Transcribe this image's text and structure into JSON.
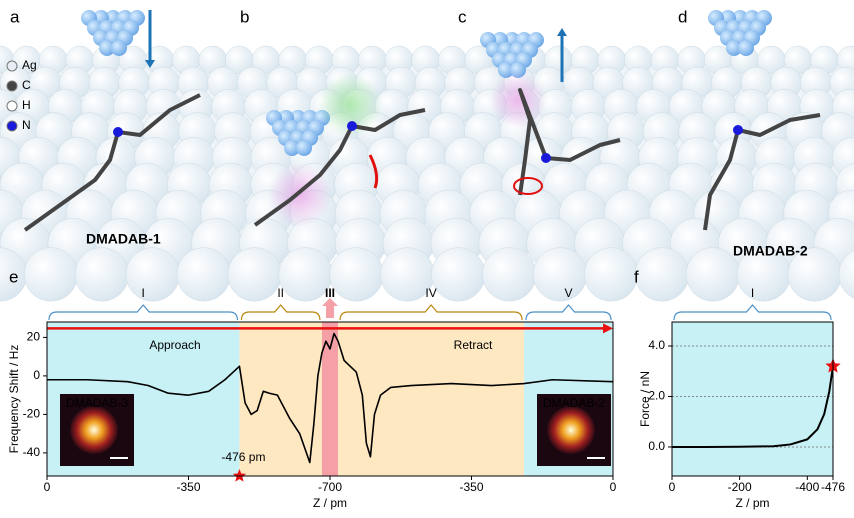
{
  "panels": {
    "a": "a",
    "b": "b",
    "c": "c",
    "d": "d",
    "legend": [
      "Ag",
      "C",
      "H",
      "N"
    ],
    "molecule_1": "DMADAB-1",
    "molecule_2": "DMADAB-2"
  },
  "chart_data": [
    {
      "type": "line",
      "panel_label": "e",
      "xlabel": "Z / pm",
      "ylabel": "Frequency Shift / Hz",
      "x": [
        0,
        100,
        200,
        250,
        300,
        350,
        400,
        440,
        476,
        490,
        505,
        520,
        535,
        550,
        570,
        600,
        625,
        650,
        660,
        670,
        680,
        690,
        700,
        710,
        720,
        735,
        750,
        765,
        780,
        790,
        800,
        810,
        825,
        850,
        900,
        1000,
        1100,
        1180,
        1250,
        1400
      ],
      "series": [
        {
          "color": "#000000",
          "values": [
            -2,
            -2,
            -3,
            -5,
            -9,
            -10,
            -8,
            -2,
            5,
            -14,
            -20,
            -18,
            -8,
            -9,
            -10,
            -22,
            -30,
            -45,
            -25,
            0,
            12,
            18,
            14,
            22,
            18,
            8,
            5,
            2,
            -10,
            -35,
            -42,
            -20,
            -10,
            -6,
            -5,
            -4,
            -5,
            -4,
            -2,
            -3
          ]
        }
      ],
      "xlim": [
        0,
        1400
      ],
      "ylim": [
        -52,
        28
      ],
      "xticks": [
        0,
        {
          "value": 350,
          "label": "-350"
        },
        {
          "value": 700,
          "label": "-700"
        },
        {
          "value": 1050,
          "label": "-350"
        },
        {
          "value": 1400,
          "label": "0"
        }
      ],
      "yticks": [
        20,
        0,
        -20,
        -40
      ],
      "regions": [
        {
          "label": "I",
          "range": [
            0,
            476
          ],
          "color": "#c8f1f6",
          "bracket": "#4a90c8"
        },
        {
          "label": "II",
          "range": [
            476,
            680
          ],
          "color": "#fde8c2",
          "bracket": "#b8860b"
        },
        {
          "label": "III",
          "range": [
            680,
            720
          ],
          "color": "#f4a0a6",
          "bracket": "#f4a0a6"
        },
        {
          "label": "IV",
          "range": [
            720,
            1180
          ],
          "color": "#fde8c2",
          "bracket": "#b8860b"
        },
        {
          "label": "V",
          "range": [
            1180,
            1400
          ],
          "color": "#c8f1f6",
          "bracket": "#4a90c8"
        }
      ],
      "approach": "Approach",
      "retract": "Retract",
      "star_label": "-476 pm",
      "insets": [
        "DMADAB-3",
        "DMADAB-2"
      ]
    },
    {
      "type": "line",
      "panel_label": "f",
      "xlabel": "Z / pm",
      "ylabel": "Force / nN",
      "x": [
        0,
        -100,
        -200,
        -300,
        -350,
        -400,
        -430,
        -450,
        -465,
        -476
      ],
      "series": [
        {
          "color": "#000000",
          "values": [
            0,
            0,
            0.01,
            0.03,
            0.1,
            0.3,
            0.7,
            1.3,
            2.2,
            3.2
          ]
        }
      ],
      "xlim": [
        0,
        -476
      ],
      "ylim": [
        -1.15,
        4.95
      ],
      "xticks": [
        0,
        -200,
        -400,
        -476
      ],
      "yticks": [
        {
          "value": 0,
          "label": "0.0"
        },
        {
          "value": 2,
          "label": "2.0"
        },
        {
          "value": 4,
          "label": "4.0"
        }
      ],
      "grid": true,
      "regions": [
        {
          "label": "I",
          "range": [
            0,
            -476
          ],
          "color": "#c8f1f6",
          "bracket": "#4a90c8"
        }
      ]
    }
  ]
}
